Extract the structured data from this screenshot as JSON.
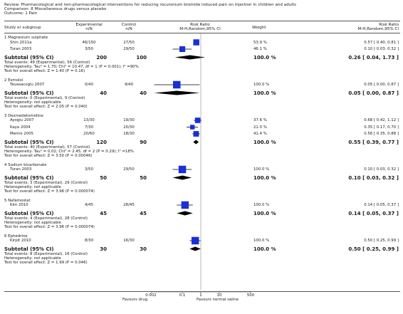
{
  "header": {
    "review": "Review:  Pharmacological and non-pharmacological interventions for reducing rocuronium bromide induced pain on injection in children and adults",
    "comparison": "Comparison:  8 Miscellaneous drugs versus placebo",
    "outcome": "Outcome:  1 Pain"
  },
  "columns": {
    "study": "Study or subgroup",
    "exp1": "Experimental",
    "exp2": "n/N",
    "ctl1": "Control",
    "ctl2": "n/N",
    "rr1": "Risk Ratio",
    "rr2": "M-H,Random,95% CI",
    "weight": "Weight",
    "rr3": "Risk Ratio",
    "rr4": "M-H,Random,95% CI"
  },
  "colors": {
    "marker": "#1a2fd6",
    "diamond": "#000000",
    "text": "#1a1a1a"
  },
  "axis_footer": {
    "ticks": [
      "0.002",
      "0.1",
      "1",
      "10",
      "500"
    ],
    "left_label": "Favours drug",
    "right_label": "Favours normal saline"
  },
  "chart_data": {
    "type": "forest",
    "scale": "log",
    "xlim": [
      0.002,
      500
    ],
    "null_line": 1,
    "groups": [
      {
        "title": "1 Magnesium sulphate",
        "studies": [
          {
            "name": "Shin 2011a",
            "exp": "46/150",
            "ctl": "27/50",
            "weight": "53.9 %",
            "ci_text": "0.57 [ 0.40, 0.81 ]",
            "rr": 0.57,
            "lo": 0.4,
            "hi": 0.81,
            "w": 53.9
          },
          {
            "name": "Turan 2003",
            "exp": "3/50",
            "ctl": "29/50",
            "weight": "46.1 %",
            "ci_text": "0.10 [ 0.03, 0.32 ]",
            "rr": 0.1,
            "lo": 0.03,
            "hi": 0.32,
            "w": 46.1
          }
        ],
        "subtotal": {
          "label": "Subtotal (95% CI)",
          "exp_n": "200",
          "ctl_n": "100",
          "weight": "100.0 %",
          "ci_text": "0.26 [ 0.04, 1.73 ]",
          "rr": 0.26,
          "lo": 0.04,
          "hi": 1.73
        },
        "notes": [
          "Total events: 49 (Experimental), 56 (Control)",
          "Heterogeneity: Tau² = 1.70; Chi² = 10.47, df = 1 (P = 0.001); I² =90%",
          "Test for overall effect: Z = 1.40 (P = 0.16)"
        ]
      },
      {
        "title": "2 Esmolol",
        "studies": [
          {
            "name": "Tavasacoglu 2007",
            "exp": "0/40",
            "ctl": "9/40",
            "weight": "100.0 %",
            "ci_text": "0.05 [ 0.00, 0.87 ]",
            "rr": 0.05,
            "lo": 0.003,
            "hi": 0.87,
            "w": 100
          }
        ],
        "subtotal": {
          "label": "Subtotal (95% CI)",
          "exp_n": "40",
          "ctl_n": "40",
          "weight": "100.0 %",
          "ci_text": "0.05 [ 0.00, 0.87 ]",
          "rr": 0.05,
          "lo": 0.003,
          "hi": 0.87
        },
        "notes": [
          "Total events: 0 (Experimental), 9 (Control)",
          "Heterogeneity: not applicable",
          "Test for overall effect: Z = 2.05 (P = 0.040)"
        ]
      },
      {
        "title": "3 Dexmedetomidine",
        "studies": [
          {
            "name": "Ayoglu 2007",
            "exp": "13/30",
            "ctl": "19/30",
            "weight": "37.6 %",
            "ci_text": "0.68 [ 0.42, 1.12 ]",
            "rr": 0.68,
            "lo": 0.42,
            "hi": 1.12,
            "w": 37.6
          },
          {
            "name": "Kaya 2004",
            "exp": "7/30",
            "ctl": "20/30",
            "weight": "21.0 %",
            "ci_text": "0.35 [ 0.17, 0.70 ]",
            "rr": 0.35,
            "lo": 0.17,
            "hi": 0.7,
            "w": 21.0
          },
          {
            "name": "Memis 2005",
            "exp": "20/60",
            "ctl": "18/30",
            "weight": "41.4 %",
            "ci_text": "0.56 [ 0.35, 0.88 ]",
            "rr": 0.56,
            "lo": 0.35,
            "hi": 0.88,
            "w": 41.4
          }
        ],
        "subtotal": {
          "label": "Subtotal (95% CI)",
          "exp_n": "120",
          "ctl_n": "90",
          "weight": "100.0 %",
          "ci_text": "0.55 [ 0.39, 0.77 ]",
          "rr": 0.55,
          "lo": 0.39,
          "hi": 0.77
        },
        "notes": [
          "Total events: 40 (Experimental), 57 (Control)",
          "Heterogeneity: Tau² = 0.02; Chi² = 2.45, df = 2 (P = 0.29); I² =18%",
          "Test for overall effect: Z = 3.50 (P = 0.00046)"
        ]
      },
      {
        "title": "4 Sodium bicarbonate",
        "studies": [
          {
            "name": "Turan 2003",
            "exp": "3/50",
            "ctl": "29/50",
            "weight": "100.0 %",
            "ci_text": "0.10 [ 0.03, 0.32 ]",
            "rr": 0.1,
            "lo": 0.03,
            "hi": 0.32,
            "w": 100
          }
        ],
        "subtotal": {
          "label": "Subtotal (95% CI)",
          "exp_n": "50",
          "ctl_n": "50",
          "weight": "100.0 %",
          "ci_text": "0.10 [ 0.03, 0.32 ]",
          "rr": 0.1,
          "lo": 0.03,
          "hi": 0.32
        },
        "notes": [
          "Total events: 3 (Experimental), 29 (Control)",
          "Heterogeneity: not applicable",
          "Test for overall effect: Z = 3.96 (P = 0.000074)"
        ]
      },
      {
        "title": "5 Nafamostat",
        "studies": [
          {
            "name": "Kim 2010",
            "exp": "4/45",
            "ctl": "28/45",
            "weight": "100.0 %",
            "ci_text": "0.14 [ 0.05, 0.37 ]",
            "rr": 0.14,
            "lo": 0.05,
            "hi": 0.37,
            "w": 100
          }
        ],
        "subtotal": {
          "label": "Subtotal (95% CI)",
          "exp_n": "45",
          "ctl_n": "45",
          "weight": "100.0 %",
          "ci_text": "0.14 [ 0.05, 0.37 ]",
          "rr": 0.14,
          "lo": 0.05,
          "hi": 0.37
        },
        "notes": [
          "Total events: 4 (Experimental), 28 (Control)",
          "Heterogeneity: not applicable",
          "Test for overall effect: Z = 3.96 (P = 0.000074)"
        ]
      },
      {
        "title": "6 Ephedrine",
        "studies": [
          {
            "name": "Kirpit 2010",
            "exp": "8/30",
            "ctl": "16/30",
            "weight": "100.0 %",
            "ci_text": "0.50 [ 0.25, 0.99 ]",
            "rr": 0.5,
            "lo": 0.25,
            "hi": 0.99,
            "w": 100
          }
        ],
        "subtotal": {
          "label": "Subtotal (95% CI)",
          "exp_n": "30",
          "ctl_n": "30",
          "weight": "100.0 %",
          "ci_text": "0.50 [ 0.25, 0.99 ]",
          "rr": 0.5,
          "lo": 0.25,
          "hi": 0.99
        },
        "notes": [
          "Total events: 8 (Experimental), 16 (Control)",
          "Heterogeneity: not applicable",
          "Test for overall effect: Z = 1.99 (P = 0.046)"
        ]
      }
    ]
  }
}
